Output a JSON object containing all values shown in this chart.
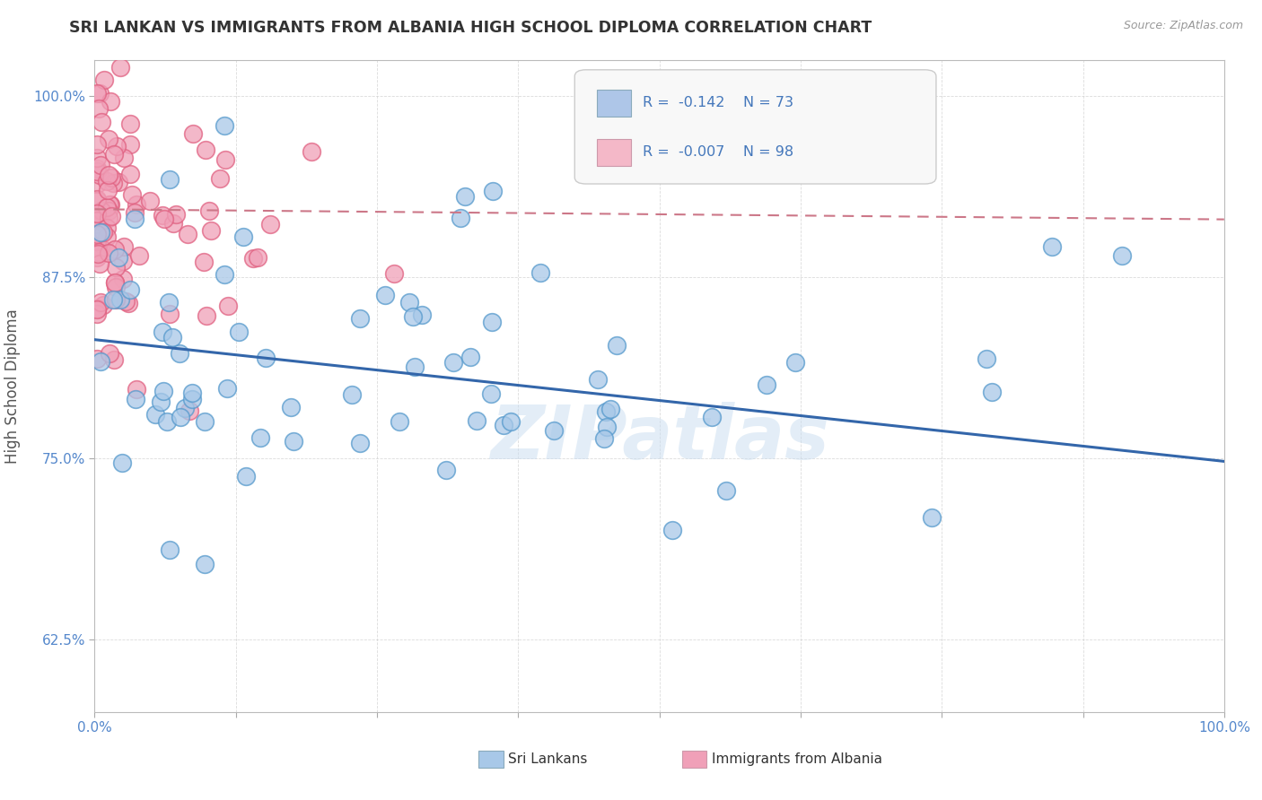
{
  "title": "SRI LANKAN VS IMMIGRANTS FROM ALBANIA HIGH SCHOOL DIPLOMA CORRELATION CHART",
  "source_text": "Source: ZipAtlas.com",
  "ylabel": "High School Diploma",
  "xlim": [
    0,
    1
  ],
  "ylim": [
    0.575,
    1.025
  ],
  "yticks": [
    0.625,
    0.75,
    0.875,
    1.0
  ],
  "ytick_labels": [
    "62.5%",
    "75.0%",
    "87.5%",
    "100.0%"
  ],
  "xticks": [
    0,
    0.125,
    0.25,
    0.375,
    0.5,
    0.625,
    0.75,
    0.875,
    1.0
  ],
  "xtick_labels_show": [
    "0.0%",
    "100.0%"
  ],
  "watermark": "ZIPatlas",
  "sri_lankan_color": "#a8c8e8",
  "albania_color": "#f0a0b8",
  "sri_lankan_edge": "#5599cc",
  "albania_edge": "#e06080",
  "sri_lankan_line_color": "#3366aa",
  "albania_line_color": "#cc7788",
  "background_color": "#ffffff",
  "grid_color": "#cccccc",
  "title_color": "#333333",
  "axis_tick_color": "#5588cc",
  "label_color": "#555555",
  "legend_box_color": "#aec6e8",
  "legend_box_color2": "#f4b8c8",
  "blue_line_x": [
    0.0,
    1.0
  ],
  "blue_line_y": [
    0.832,
    0.748
  ],
  "pink_line_x": [
    0.0,
    1.0
  ],
  "pink_line_y": [
    0.922,
    0.915
  ],
  "blue_seed": 42,
  "pink_seed": 7,
  "n_blue": 73,
  "n_pink": 98
}
